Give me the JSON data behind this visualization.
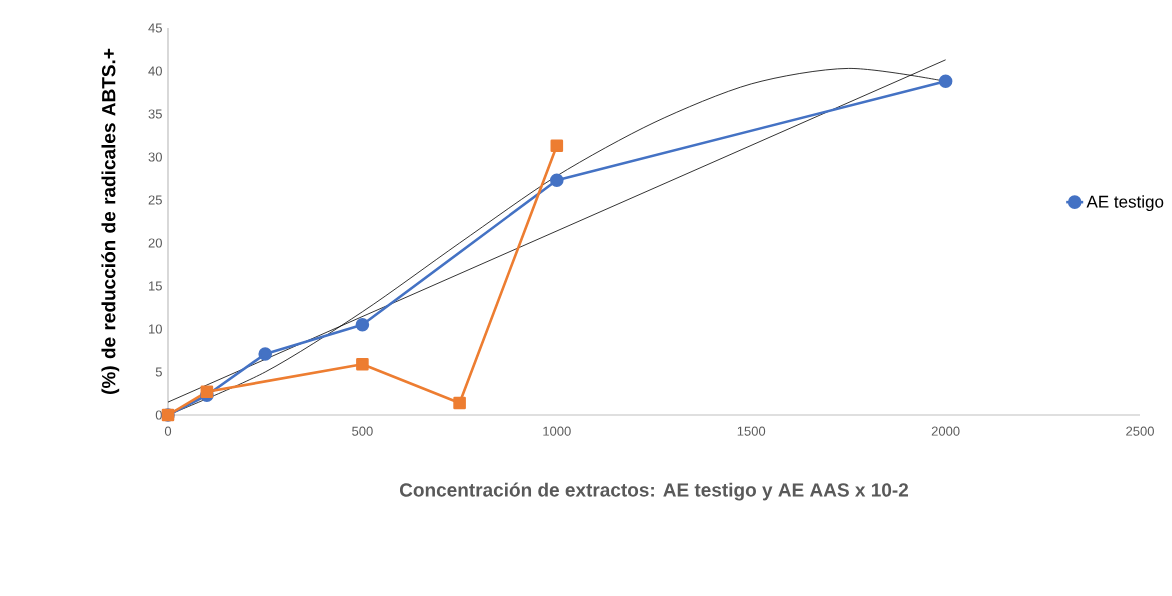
{
  "chart_data": {
    "type": "line",
    "xlabel": "Concentración de extractos: AE testigo y AE AAS x 10-2",
    "ylabel": "(%) de reducción de radicales ABTS.+",
    "xlim": [
      0,
      2500
    ],
    "xticks": [
      0,
      500,
      1000,
      1500,
      2000,
      2500
    ],
    "ylim": [
      0,
      45
    ],
    "yticks": [
      0,
      5,
      10,
      15,
      20,
      25,
      30,
      35,
      40,
      45
    ],
    "grid": false,
    "legend": "right",
    "series": [
      {
        "name": "AE testigo",
        "color": "#4472c4",
        "marker": "circle",
        "x": [
          0,
          100,
          250,
          500,
          1000,
          2000
        ],
        "values": [
          0,
          2.3,
          7.1,
          10.5,
          27.3,
          38.8
        ]
      },
      {
        "color": "#ed7d31",
        "marker": "square",
        "x": [
          0,
          100,
          500,
          750,
          1000
        ],
        "values": [
          0,
          2.7,
          5.9,
          1.4,
          31.3
        ]
      },
      {
        "color": "#000000",
        "marker": "none",
        "x": [
          0,
          2000
        ],
        "values": [
          1.5,
          41.3
        ]
      },
      {
        "color": "#000000",
        "marker": "none",
        "x": [
          0,
          250,
          500,
          750,
          1000,
          1250,
          1500,
          1750,
          2000
        ],
        "values": [
          0,
          5,
          12,
          20,
          27.8,
          34,
          38.5,
          40.3,
          38.8
        ]
      }
    ]
  }
}
